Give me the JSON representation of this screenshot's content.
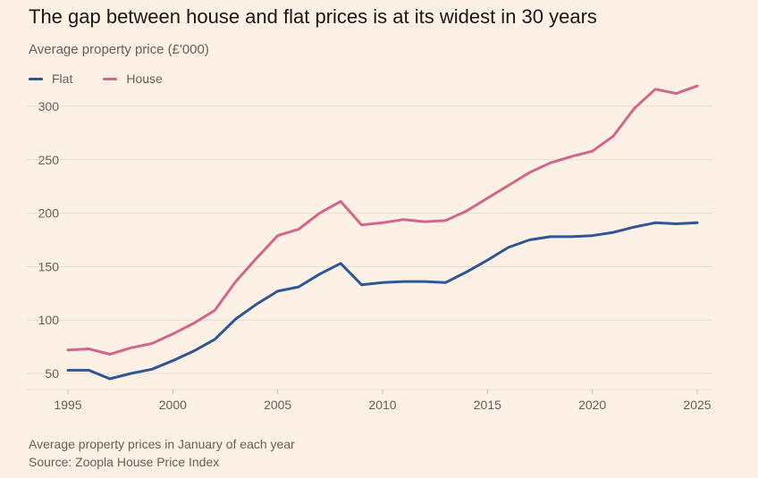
{
  "header": {
    "title": "The gap between house and flat prices is at its widest in 30 years",
    "subtitle": "Average property price (£'000)"
  },
  "footer": {
    "note": "Average property prices in January of each year",
    "source": "Source: Zoopla House Price Index"
  },
  "chart_data": {
    "type": "line",
    "title": "The gap between house and flat prices is at its widest in 30 years",
    "subtitle": "Average property price (£'000)",
    "xlim": [
      1995,
      2025
    ],
    "ylim": [
      40,
      320
    ],
    "x_ticks": [
      1995,
      2000,
      2005,
      2010,
      2015,
      2020,
      2025
    ],
    "y_ticks": [
      50,
      100,
      150,
      200,
      250,
      300
    ],
    "grid": "horizontal",
    "legend_position": "top-left",
    "x": [
      1995,
      1996,
      1997,
      1998,
      1999,
      2000,
      2001,
      2002,
      2003,
      2004,
      2005,
      2006,
      2007,
      2008,
      2009,
      2010,
      2011,
      2012,
      2013,
      2014,
      2015,
      2016,
      2017,
      2018,
      2019,
      2020,
      2021,
      2022,
      2023,
      2024,
      2025
    ],
    "series": [
      {
        "name": "Flat",
        "color": "#2c5696",
        "values": [
          53,
          53,
          45,
          50,
          54,
          62,
          71,
          82,
          101,
          115,
          127,
          131,
          143,
          153,
          133,
          135,
          136,
          136,
          135,
          145,
          156,
          168,
          175,
          178,
          178,
          179,
          182,
          187,
          191,
          190,
          191
        ]
      },
      {
        "name": "House",
        "color": "#d1668a",
        "values": [
          72,
          73,
          68,
          74,
          78,
          87,
          97,
          109,
          136,
          158,
          179,
          185,
          200,
          211,
          189,
          191,
          194,
          192,
          193,
          202,
          214,
          226,
          238,
          247,
          253,
          258,
          272,
          298,
          316,
          312,
          319
        ]
      }
    ]
  }
}
